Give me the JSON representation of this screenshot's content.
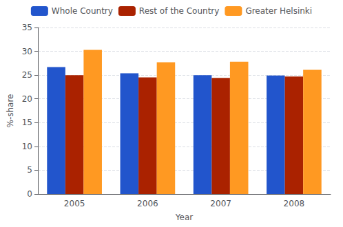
{
  "chart_data": {
    "type": "bar",
    "xlabel": "Year",
    "ylabel": "%-share",
    "categories": [
      "2005",
      "2006",
      "2007",
      "2008"
    ],
    "series": [
      {
        "name": "Whole Country",
        "color": "#2255CC",
        "values": [
          26.7,
          25.4,
          25.0,
          24.9
        ]
      },
      {
        "name": "Rest of the Country",
        "color": "#AA2200",
        "values": [
          25.0,
          24.5,
          24.4,
          24.7
        ]
      },
      {
        "name": "Greater Helsinki",
        "color": "#FF9922",
        "values": [
          30.3,
          27.7,
          27.8,
          26.1
        ]
      }
    ],
    "ylim": [
      0,
      35
    ],
    "yticks": [
      0,
      5,
      10,
      15,
      20,
      25,
      30,
      35
    ],
    "grid": true,
    "legend": "top"
  }
}
